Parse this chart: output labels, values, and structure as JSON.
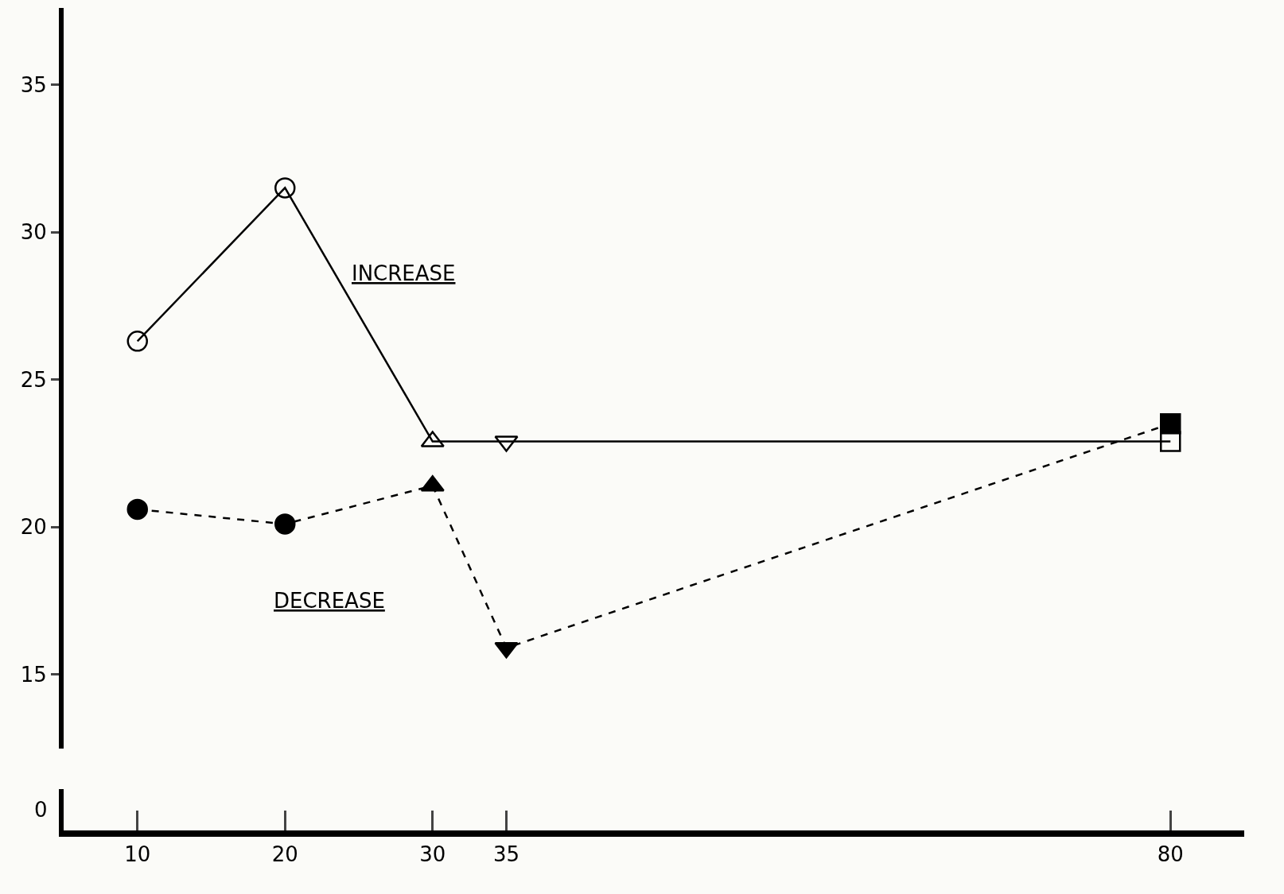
{
  "chart_data": {
    "type": "line",
    "x": [
      10,
      20,
      30,
      35,
      80
    ],
    "series": [
      {
        "name": "INCREASE",
        "color": "#000000",
        "values": [
          26.3,
          31.5,
          22.9,
          22.9,
          22.9
        ],
        "line_style": "solid",
        "marker": [
          "circle-open",
          "circle-open",
          "triangle-up-open",
          "triangle-down-open",
          "square-open"
        ]
      },
      {
        "name": "DECREASE",
        "color": "#000000",
        "values": [
          20.6,
          20.1,
          21.4,
          15.9,
          23.5
        ],
        "line_style": "dashed",
        "marker": [
          "circle",
          "circle",
          "triangle-up",
          "triangle-down",
          "square"
        ]
      }
    ],
    "xlim": [
      5,
      85
    ],
    "xticks": [
      10,
      20,
      30,
      35,
      80
    ],
    "ylim": [
      12.5,
      37.6
    ],
    "yticks": [
      15,
      20,
      25,
      30,
      35
    ],
    "annotations": [
      "0"
    ],
    "grid": false,
    "legend": false
  }
}
